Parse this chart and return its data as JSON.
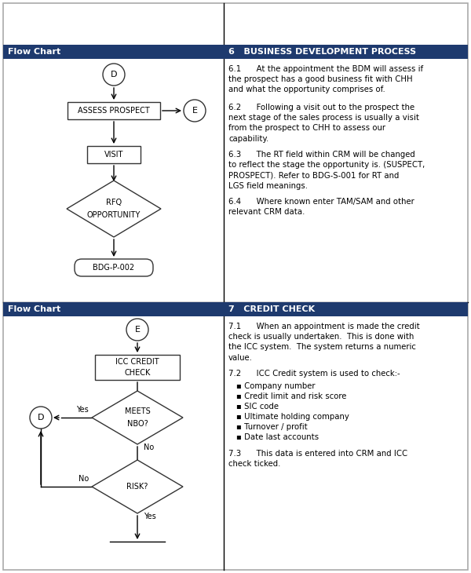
{
  "header_color": "#1e3a6e",
  "header_text_color": "#ffffff",
  "fig_bg": "#ffffff",
  "section1_header_left": "Flow Chart",
  "section1_header_right": "6   BUSINESS DEVELOPMENT PROCESS",
  "section2_header_left": "Flow Chart",
  "section2_header_right": "7   CREDIT CHECK",
  "text_61": "6.1      At the appointment the BDM will assess if\nthe prospect has a good business fit with CHH\nand what the opportunity comprises of.",
  "text_62": "6.2      Following a visit out to the prospect the\nnext stage of the sales process is usually a visit\nfrom the prospect to CHH to assess our\ncapability.",
  "text_63": "6.3      The RT field within CRM will be changed\nto reflect the stage the opportunity is. (SUSPECT,\nPROSPECT). Refer to BDG-S-001 for RT and\nLGS field meanings.",
  "text_64": "6.4      Where known enter TAM/SAM and other\nrelevant CRM data.",
  "text_71": "7.1      When an appointment is made the credit\ncheck is usually undertaken.  This is done with\nthe ICC system.  The system returns a numeric\nvalue.",
  "text_72_header": "7.2      ICC Credit system is used to check:-",
  "text_72_bullets": [
    "Company number",
    "Credit limit and risk score",
    "SIC code",
    "Ultimate holding company",
    "Turnover / profit",
    "Date last accounts"
  ],
  "text_73": "7.3      This data is entered into CRM and ICC\ncheck ticked."
}
